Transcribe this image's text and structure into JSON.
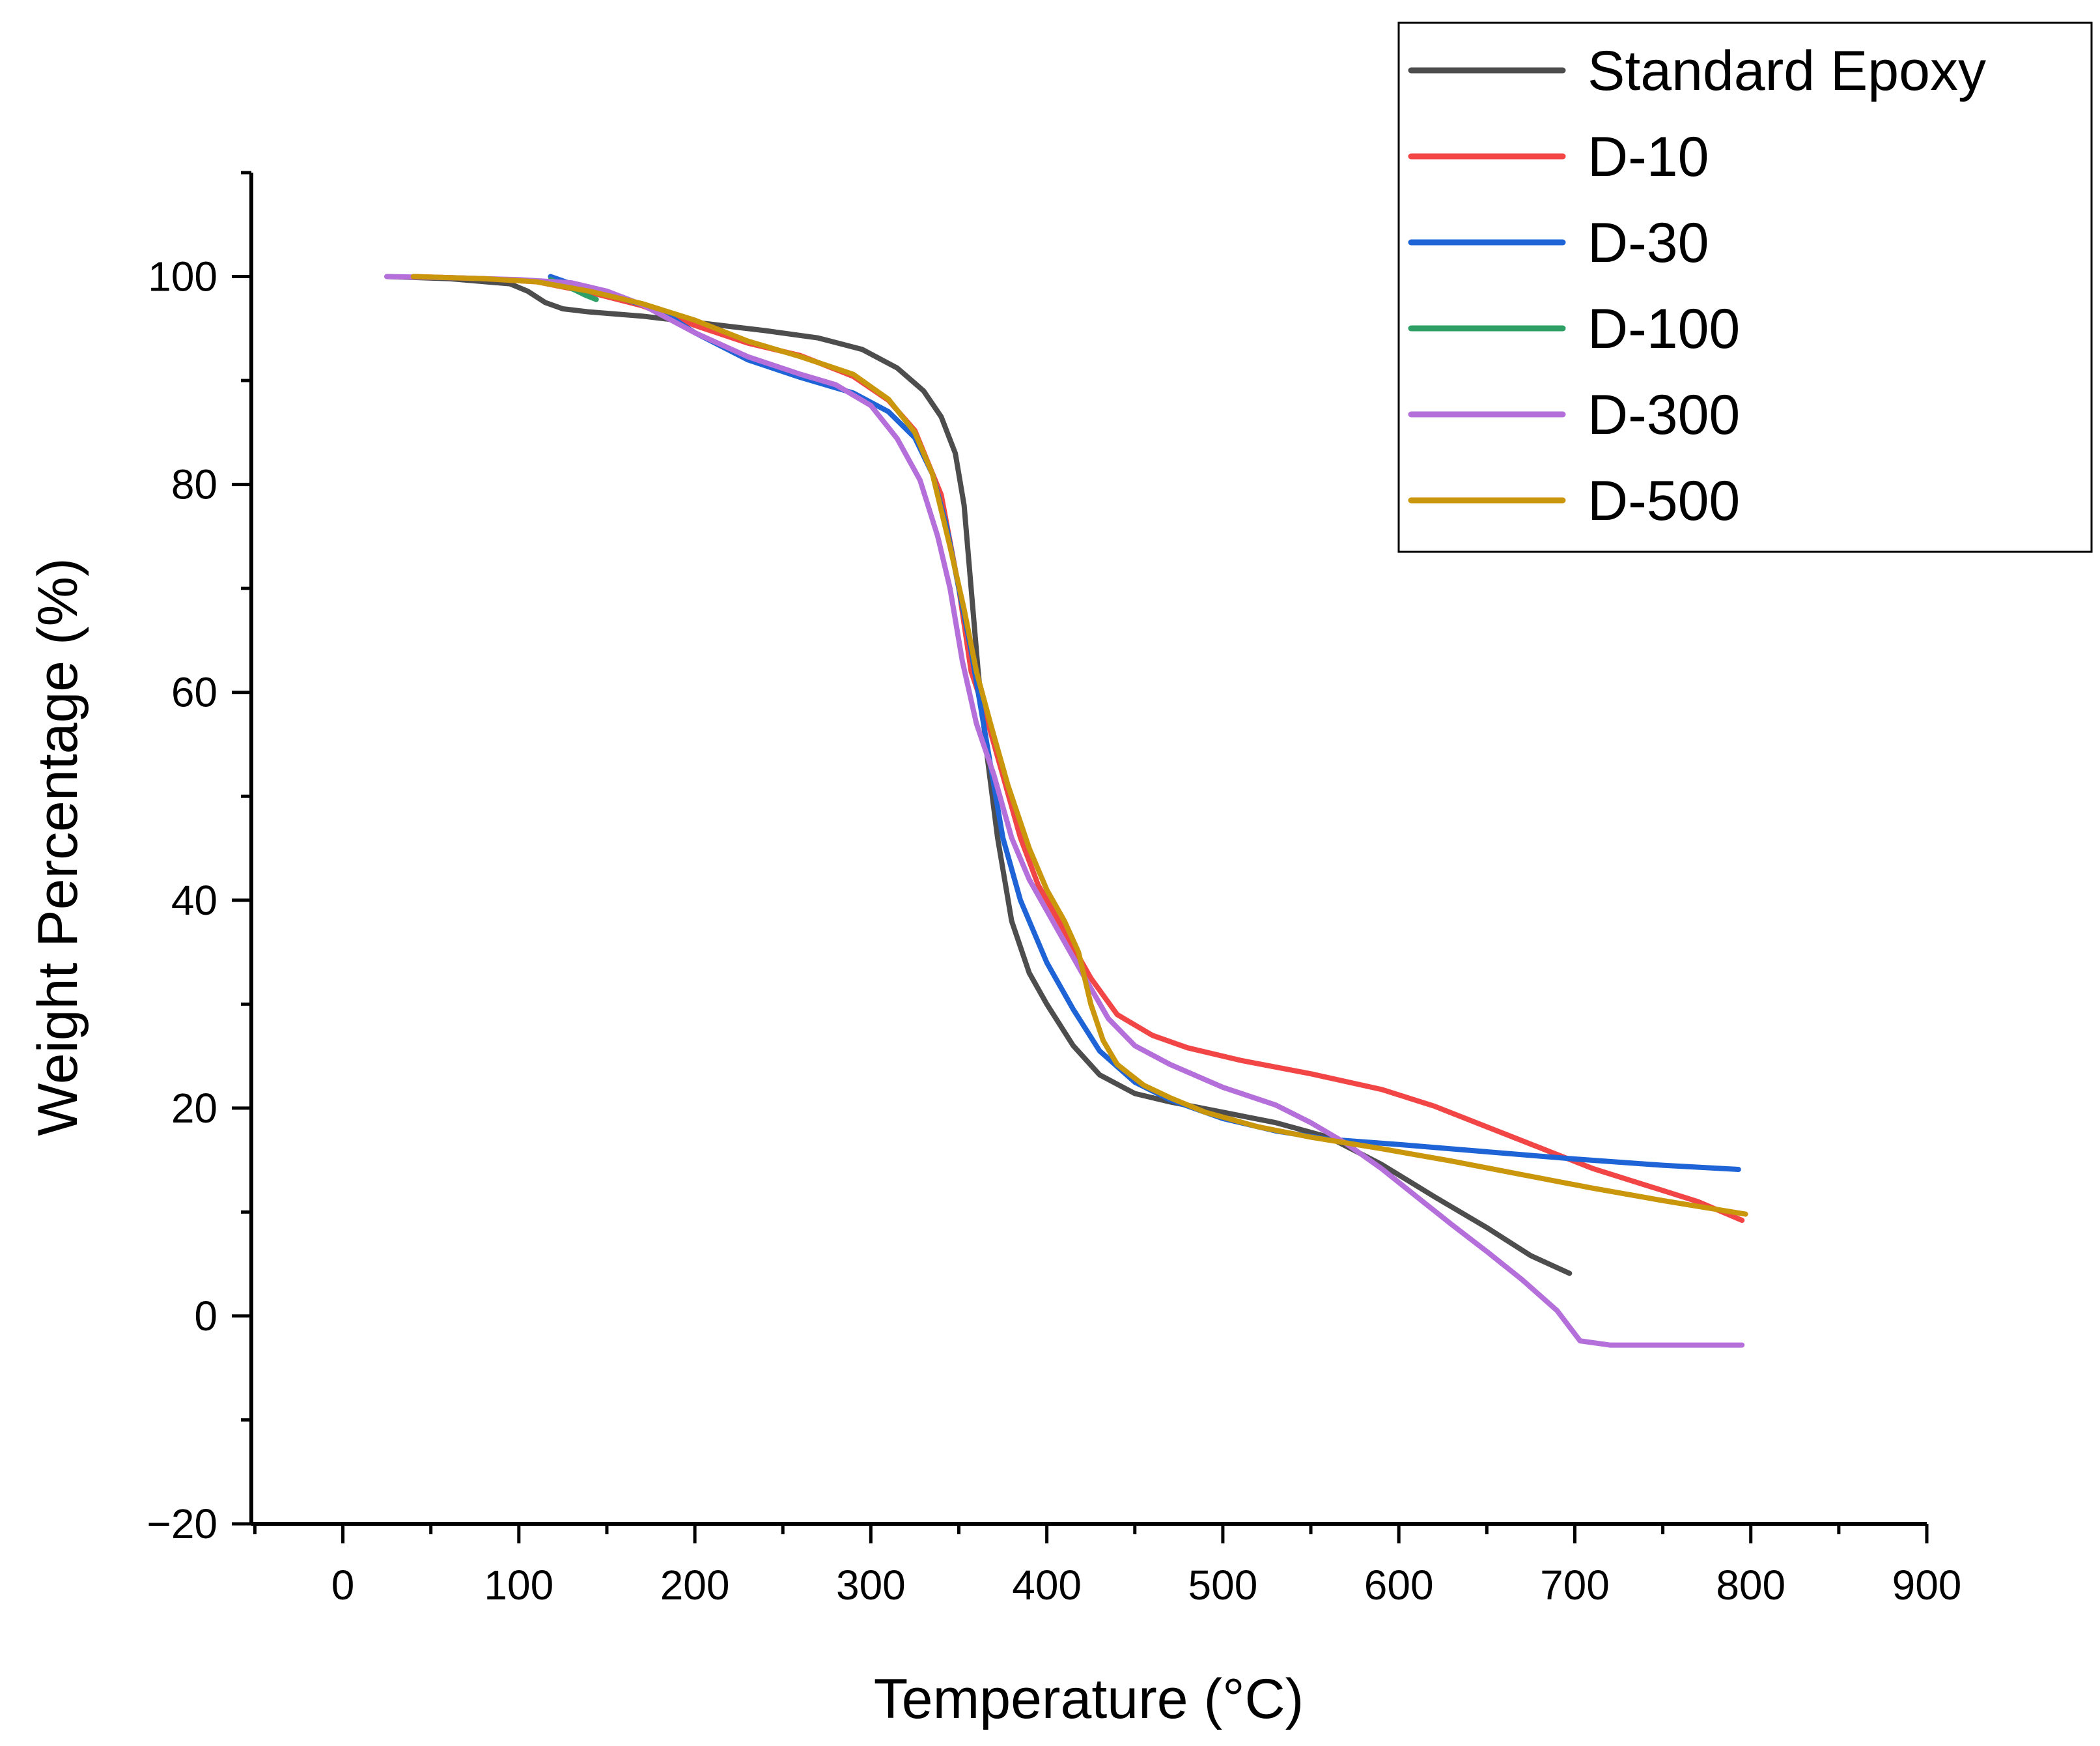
{
  "chart_data": {
    "type": "line",
    "title": "",
    "xlabel": "Temperature (°C)",
    "ylabel": "Weight Percentage (%)",
    "xlim": [
      -52,
      900
    ],
    "ylim": [
      -20,
      110
    ],
    "xticks": [
      0,
      100,
      200,
      300,
      400,
      500,
      600,
      700,
      800,
      900
    ],
    "yticks": [
      -20,
      0,
      20,
      40,
      60,
      80,
      100
    ],
    "x_minor_step": 50,
    "y_minor_step": 10,
    "grid": false,
    "legend_position": "top-right",
    "series": [
      {
        "name": "Standard Epoxy",
        "color": "#4d4d4d",
        "points": [
          [
            25,
            100
          ],
          [
            60,
            99.8
          ],
          [
            95,
            99.3
          ],
          [
            105,
            98.6
          ],
          [
            115,
            97.5
          ],
          [
            125,
            96.9
          ],
          [
            140,
            96.6
          ],
          [
            170,
            96.2
          ],
          [
            200,
            95.6
          ],
          [
            240,
            94.8
          ],
          [
            270,
            94.1
          ],
          [
            295,
            93.0
          ],
          [
            315,
            91.2
          ],
          [
            330,
            89.0
          ],
          [
            340,
            86.5
          ],
          [
            348,
            83
          ],
          [
            353,
            78
          ],
          [
            357,
            70
          ],
          [
            361,
            62
          ],
          [
            366,
            54
          ],
          [
            372,
            46
          ],
          [
            380,
            38
          ],
          [
            390,
            33
          ],
          [
            400,
            30
          ],
          [
            415,
            26
          ],
          [
            430,
            23.2
          ],
          [
            450,
            21.4
          ],
          [
            470,
            20.6
          ],
          [
            500,
            19.6
          ],
          [
            530,
            18.6
          ],
          [
            560,
            17.2
          ],
          [
            590,
            14.6
          ],
          [
            620,
            11.5
          ],
          [
            650,
            8.5
          ],
          [
            675,
            5.8
          ],
          [
            697,
            4.1
          ]
        ]
      },
      {
        "name": "D-10",
        "color": "#f24646",
        "points": [
          [
            40,
            100
          ],
          [
            80,
            99.8
          ],
          [
            110,
            99.5
          ],
          [
            140,
            98.5
          ],
          [
            170,
            97.2
          ],
          [
            200,
            95.3
          ],
          [
            230,
            93.6
          ],
          [
            260,
            92.4
          ],
          [
            290,
            90.4
          ],
          [
            310,
            88.1
          ],
          [
            325,
            85.2
          ],
          [
            340,
            79
          ],
          [
            350,
            70
          ],
          [
            357,
            62
          ],
          [
            365,
            58
          ],
          [
            375,
            52
          ],
          [
            385,
            46
          ],
          [
            395,
            41.5
          ],
          [
            410,
            37
          ],
          [
            425,
            32.5
          ],
          [
            440,
            29
          ],
          [
            460,
            27
          ],
          [
            480,
            25.8
          ],
          [
            510,
            24.6
          ],
          [
            550,
            23.3
          ],
          [
            590,
            21.8
          ],
          [
            620,
            20.2
          ],
          [
            650,
            18.2
          ],
          [
            680,
            16.2
          ],
          [
            710,
            14.2
          ],
          [
            740,
            12.6
          ],
          [
            770,
            11
          ],
          [
            795,
            9.2
          ]
        ]
      },
      {
        "name": "D-30",
        "color": "#1e64d6",
        "points": [
          [
            118,
            100
          ],
          [
            140,
            98.7
          ],
          [
            160,
            97.8
          ],
          [
            180,
            96.8
          ],
          [
            200,
            94.6
          ],
          [
            230,
            92.0
          ],
          [
            260,
            90.3
          ],
          [
            290,
            88.8
          ],
          [
            310,
            87.0
          ],
          [
            325,
            84.5
          ],
          [
            335,
            81
          ],
          [
            343,
            76
          ],
          [
            350,
            70
          ],
          [
            357,
            64
          ],
          [
            365,
            56
          ],
          [
            375,
            46
          ],
          [
            385,
            40
          ],
          [
            400,
            34
          ],
          [
            415,
            29.5
          ],
          [
            430,
            25.5
          ],
          [
            450,
            22.5
          ],
          [
            470,
            20.8
          ],
          [
            500,
            19.0
          ],
          [
            530,
            17.8
          ],
          [
            560,
            17.0
          ],
          [
            600,
            16.5
          ],
          [
            650,
            15.8
          ],
          [
            700,
            15.1
          ],
          [
            750,
            14.5
          ],
          [
            793,
            14.1
          ]
        ]
      },
      {
        "name": "D-100",
        "color": "#2ea065",
        "points": [
          [
            118,
            99.7
          ],
          [
            125,
            99.2
          ],
          [
            132,
            98.7
          ],
          [
            138,
            98.2
          ],
          [
            144,
            97.8
          ]
        ]
      },
      {
        "name": "D-300",
        "color": "#b46fdb",
        "points": [
          [
            25,
            100
          ],
          [
            60,
            99.9
          ],
          [
            100,
            99.7
          ],
          [
            130,
            99.4
          ],
          [
            150,
            98.6
          ],
          [
            170,
            97.3
          ],
          [
            200,
            94.6
          ],
          [
            230,
            92.3
          ],
          [
            260,
            90.6
          ],
          [
            280,
            89.6
          ],
          [
            300,
            87.6
          ],
          [
            315,
            84.4
          ],
          [
            328,
            80.4
          ],
          [
            338,
            75
          ],
          [
            345,
            70
          ],
          [
            352,
            63
          ],
          [
            360,
            57
          ],
          [
            370,
            52
          ],
          [
            380,
            46
          ],
          [
            390,
            42
          ],
          [
            400,
            39
          ],
          [
            410,
            36
          ],
          [
            420,
            33
          ],
          [
            435,
            28.6
          ],
          [
            450,
            26
          ],
          [
            470,
            24.2
          ],
          [
            500,
            22
          ],
          [
            530,
            20.3
          ],
          [
            550,
            18.6
          ],
          [
            570,
            16.6
          ],
          [
            590,
            14.2
          ],
          [
            610,
            11.5
          ],
          [
            630,
            8.8
          ],
          [
            650,
            6.2
          ],
          [
            670,
            3.5
          ],
          [
            690,
            0.5
          ],
          [
            703,
            -2.4
          ],
          [
            720,
            -2.8
          ],
          [
            760,
            -2.8
          ],
          [
            795,
            -2.8
          ]
        ]
      },
      {
        "name": "D-500",
        "color": "#c9960c",
        "points": [
          [
            40,
            100
          ],
          [
            80,
            99.8
          ],
          [
            110,
            99.5
          ],
          [
            140,
            98.6
          ],
          [
            170,
            97.4
          ],
          [
            200,
            95.8
          ],
          [
            230,
            93.8
          ],
          [
            260,
            92.3
          ],
          [
            290,
            90.6
          ],
          [
            310,
            88.2
          ],
          [
            325,
            85
          ],
          [
            335,
            81
          ],
          [
            345,
            74
          ],
          [
            353,
            68
          ],
          [
            360,
            62
          ],
          [
            368,
            57
          ],
          [
            378,
            51
          ],
          [
            390,
            45
          ],
          [
            400,
            41
          ],
          [
            410,
            38
          ],
          [
            418,
            35
          ],
          [
            425,
            30
          ],
          [
            432,
            26.5
          ],
          [
            440,
            24.2
          ],
          [
            455,
            22.2
          ],
          [
            470,
            21
          ],
          [
            490,
            19.6
          ],
          [
            520,
            18.2
          ],
          [
            550,
            17.2
          ],
          [
            590,
            16.1
          ],
          [
            630,
            14.9
          ],
          [
            670,
            13.6
          ],
          [
            710,
            12.3
          ],
          [
            750,
            11.1
          ],
          [
            797,
            9.8
          ]
        ]
      }
    ]
  }
}
